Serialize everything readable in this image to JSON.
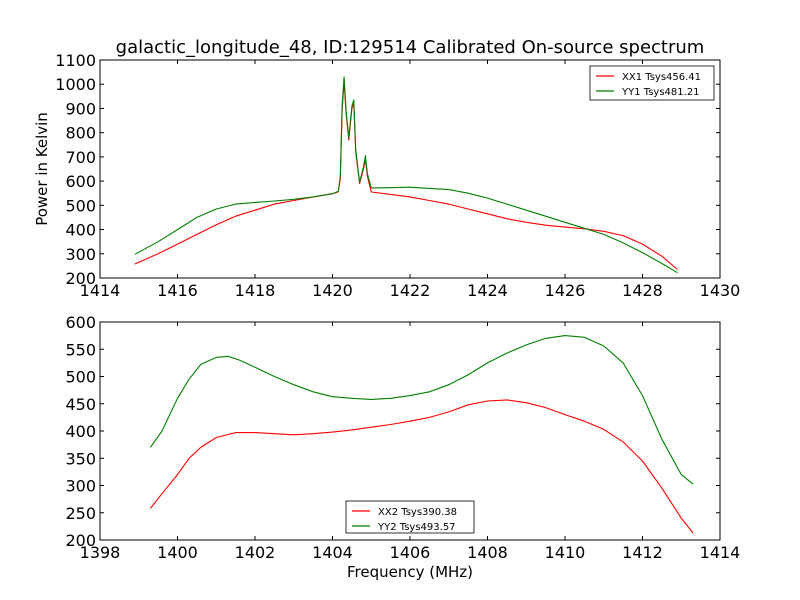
{
  "figure": {
    "title": "galactic_longitude_48, ID:129514 Calibrated On-source spectrum",
    "xlabel": "Frequency (MHz)"
  },
  "chart_data": [
    {
      "type": "line",
      "title": "galactic_longitude_48, ID:129514 Calibrated On-source spectrum",
      "xlabel": "",
      "ylabel": "Power in Kelvin",
      "xlim": [
        1414,
        1430
      ],
      "ylim": [
        200,
        1100
      ],
      "xticks": [
        1414,
        1416,
        1418,
        1420,
        1422,
        1424,
        1426,
        1428,
        1430
      ],
      "yticks": [
        200,
        300,
        400,
        500,
        600,
        700,
        800,
        900,
        1000,
        1100
      ],
      "grid": false,
      "legend_position": "top-right",
      "series": [
        {
          "name": "XX1 Tsys456.41",
          "color": "#ff0000",
          "points": [
            [
              1414.9,
              258
            ],
            [
              1415.5,
              300
            ],
            [
              1416,
              340
            ],
            [
              1416.5,
              380
            ],
            [
              1417,
              420
            ],
            [
              1417.5,
              455
            ],
            [
              1418,
              480
            ],
            [
              1418.5,
              505
            ],
            [
              1419,
              520
            ],
            [
              1419.5,
              535
            ],
            [
              1420,
              548
            ],
            [
              1420.15,
              556
            ],
            [
              1420.2,
              610
            ],
            [
              1420.25,
              900
            ],
            [
              1420.3,
              1010
            ],
            [
              1420.35,
              880
            ],
            [
              1420.42,
              770
            ],
            [
              1420.5,
              900
            ],
            [
              1420.55,
              920
            ],
            [
              1420.6,
              720
            ],
            [
              1420.7,
              590
            ],
            [
              1420.8,
              650
            ],
            [
              1420.85,
              690
            ],
            [
              1420.9,
              620
            ],
            [
              1421,
              555
            ],
            [
              1421.5,
              545
            ],
            [
              1422,
              535
            ],
            [
              1422.5,
              520
            ],
            [
              1423,
              505
            ],
            [
              1423.5,
              485
            ],
            [
              1424,
              465
            ],
            [
              1424.5,
              445
            ],
            [
              1425,
              430
            ],
            [
              1425.5,
              418
            ],
            [
              1426,
              410
            ],
            [
              1426.5,
              403
            ],
            [
              1427,
              393
            ],
            [
              1427.5,
              375
            ],
            [
              1428,
              340
            ],
            [
              1428.5,
              290
            ],
            [
              1428.9,
              235
            ]
          ]
        },
        {
          "name": "YY1 Tsys481.21",
          "color": "#008000",
          "points": [
            [
              1414.9,
              298
            ],
            [
              1415.5,
              350
            ],
            [
              1416,
              400
            ],
            [
              1416.5,
              450
            ],
            [
              1417,
              485
            ],
            [
              1417.5,
              505
            ],
            [
              1418,
              512
            ],
            [
              1418.5,
              518
            ],
            [
              1419,
              525
            ],
            [
              1419.5,
              535
            ],
            [
              1420,
              548
            ],
            [
              1420.15,
              558
            ],
            [
              1420.2,
              620
            ],
            [
              1420.25,
              920
            ],
            [
              1420.3,
              1030
            ],
            [
              1420.35,
              890
            ],
            [
              1420.42,
              780
            ],
            [
              1420.5,
              910
            ],
            [
              1420.55,
              935
            ],
            [
              1420.6,
              730
            ],
            [
              1420.7,
              595
            ],
            [
              1420.8,
              660
            ],
            [
              1420.85,
              705
            ],
            [
              1420.9,
              630
            ],
            [
              1421,
              572
            ],
            [
              1421.5,
              573
            ],
            [
              1422,
              575
            ],
            [
              1422.5,
              570
            ],
            [
              1423,
              565
            ],
            [
              1423.5,
              550
            ],
            [
              1424,
              530
            ],
            [
              1424.5,
              505
            ],
            [
              1425,
              480
            ],
            [
              1425.5,
              455
            ],
            [
              1426,
              430
            ],
            [
              1426.5,
              405
            ],
            [
              1427,
              380
            ],
            [
              1427.5,
              345
            ],
            [
              1428,
              305
            ],
            [
              1428.5,
              260
            ],
            [
              1428.9,
              222
            ]
          ]
        }
      ]
    },
    {
      "type": "line",
      "title": "",
      "xlabel": "Frequency (MHz)",
      "ylabel": "",
      "xlim": [
        1398,
        1414
      ],
      "ylim": [
        200,
        600
      ],
      "xticks": [
        1398,
        1400,
        1402,
        1404,
        1406,
        1408,
        1410,
        1412,
        1414
      ],
      "yticks": [
        200,
        250,
        300,
        350,
        400,
        450,
        500,
        550,
        600
      ],
      "grid": false,
      "legend_position": "bottom-center",
      "series": [
        {
          "name": "XX2 Tsys390.38",
          "color": "#ff0000",
          "points": [
            [
              1399.3,
              258
            ],
            [
              1399.6,
              285
            ],
            [
              1400,
              320
            ],
            [
              1400.3,
              350
            ],
            [
              1400.6,
              370
            ],
            [
              1401,
              388
            ],
            [
              1401.5,
              397
            ],
            [
              1402,
              397
            ],
            [
              1402.5,
              395
            ],
            [
              1403,
              393
            ],
            [
              1403.5,
              395
            ],
            [
              1404,
              398
            ],
            [
              1404.5,
              402
            ],
            [
              1405,
              407
            ],
            [
              1405.5,
              412
            ],
            [
              1406,
              418
            ],
            [
              1406.5,
              425
            ],
            [
              1407,
              435
            ],
            [
              1407.5,
              448
            ],
            [
              1408,
              455
            ],
            [
              1408.5,
              457
            ],
            [
              1409,
              452
            ],
            [
              1409.5,
              443
            ],
            [
              1410,
              430
            ],
            [
              1410.5,
              418
            ],
            [
              1411,
              403
            ],
            [
              1411.5,
              380
            ],
            [
              1412,
              345
            ],
            [
              1412.5,
              295
            ],
            [
              1413,
              240
            ],
            [
              1413.3,
              213
            ]
          ]
        },
        {
          "name": "YY2 Tsys493.57",
          "color": "#008000",
          "points": [
            [
              1399.3,
              370
            ],
            [
              1399.6,
              400
            ],
            [
              1400,
              460
            ],
            [
              1400.3,
              495
            ],
            [
              1400.6,
              522
            ],
            [
              1401,
              535
            ],
            [
              1401.3,
              537
            ],
            [
              1401.6,
              530
            ],
            [
              1402,
              517
            ],
            [
              1402.5,
              500
            ],
            [
              1403,
              485
            ],
            [
              1403.5,
              472
            ],
            [
              1404,
              463
            ],
            [
              1404.5,
              460
            ],
            [
              1405,
              458
            ],
            [
              1405.5,
              460
            ],
            [
              1406,
              465
            ],
            [
              1406.5,
              472
            ],
            [
              1407,
              485
            ],
            [
              1407.5,
              503
            ],
            [
              1408,
              525
            ],
            [
              1408.5,
              543
            ],
            [
              1409,
              558
            ],
            [
              1409.5,
              570
            ],
            [
              1410,
              575
            ],
            [
              1410.5,
              572
            ],
            [
              1411,
              556
            ],
            [
              1411.5,
              525
            ],
            [
              1412,
              465
            ],
            [
              1412.5,
              385
            ],
            [
              1413,
              320
            ],
            [
              1413.3,
              303
            ]
          ]
        }
      ]
    }
  ]
}
